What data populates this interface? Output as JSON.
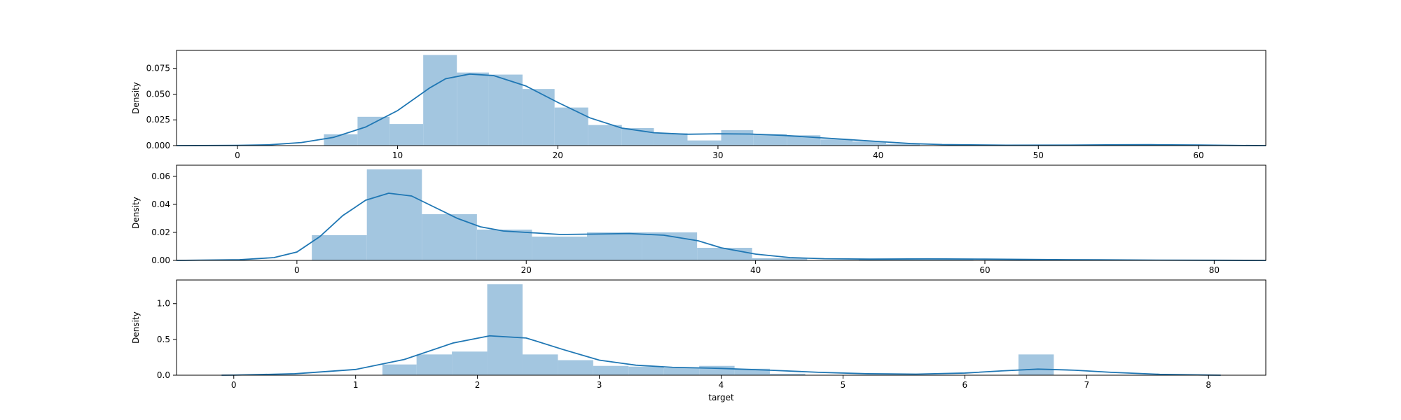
{
  "chart_data": [
    {
      "type": "histogram",
      "ylabel": "Density",
      "xlabel": "",
      "xlim": [
        -3.8,
        64.2
      ],
      "ylim": [
        0,
        0.0925
      ],
      "xticks": [
        0,
        10,
        20,
        30,
        40,
        50,
        60
      ],
      "yticks": [
        0.0,
        0.025,
        0.05,
        0.075
      ],
      "ytick_labels": [
        "0.000",
        "0.025",
        "0.050",
        "0.075"
      ],
      "bins": [
        {
          "x0": 5.4,
          "x1": 7.5,
          "value": 0.011
        },
        {
          "x0": 7.5,
          "x1": 9.5,
          "value": 0.028
        },
        {
          "x0": 9.5,
          "x1": 11.6,
          "value": 0.021
        },
        {
          "x0": 11.6,
          "x1": 13.7,
          "value": 0.088
        },
        {
          "x0": 13.7,
          "x1": 15.7,
          "value": 0.071
        },
        {
          "x0": 15.7,
          "x1": 17.8,
          "value": 0.069
        },
        {
          "x0": 17.8,
          "x1": 19.8,
          "value": 0.055
        },
        {
          "x0": 19.8,
          "x1": 21.9,
          "value": 0.037
        },
        {
          "x0": 21.9,
          "x1": 24.0,
          "value": 0.02
        },
        {
          "x0": 24.0,
          "x1": 26.0,
          "value": 0.017
        },
        {
          "x0": 26.0,
          "x1": 28.1,
          "value": 0.012
        },
        {
          "x0": 28.1,
          "x1": 30.2,
          "value": 0.005
        },
        {
          "x0": 30.2,
          "x1": 32.2,
          "value": 0.015
        },
        {
          "x0": 32.2,
          "x1": 34.3,
          "value": 0.011
        },
        {
          "x0": 34.3,
          "x1": 36.4,
          "value": 0.01
        },
        {
          "x0": 36.4,
          "x1": 38.4,
          "value": 0.006
        },
        {
          "x0": 38.4,
          "x1": 40.5,
          "value": 0.004
        },
        {
          "x0": 40.5,
          "x1": 42.6,
          "value": 0.0015
        },
        {
          "x0": 55.0,
          "x1": 59.0,
          "value": 0.001
        }
      ],
      "kde": [
        [
          -3.8,
          0.0
        ],
        [
          0,
          0.0002
        ],
        [
          2,
          0.0008
        ],
        [
          4,
          0.003
        ],
        [
          6,
          0.008
        ],
        [
          8,
          0.018
        ],
        [
          10,
          0.034
        ],
        [
          12,
          0.056
        ],
        [
          13,
          0.065
        ],
        [
          14.5,
          0.0695
        ],
        [
          16,
          0.068
        ],
        [
          18,
          0.058
        ],
        [
          20,
          0.042
        ],
        [
          22,
          0.027
        ],
        [
          24,
          0.017
        ],
        [
          26,
          0.0125
        ],
        [
          28,
          0.011
        ],
        [
          30,
          0.0115
        ],
        [
          32,
          0.0112
        ],
        [
          34,
          0.01
        ],
        [
          36,
          0.008
        ],
        [
          38,
          0.006
        ],
        [
          40,
          0.004
        ],
        [
          42,
          0.002
        ],
        [
          44,
          0.001
        ],
        [
          48,
          0.0004
        ],
        [
          52,
          0.0005
        ],
        [
          55,
          0.0008
        ],
        [
          57,
          0.0009
        ],
        [
          60,
          0.0006
        ],
        [
          62,
          0.0002
        ],
        [
          64.2,
          0.0
        ]
      ],
      "bar_color": "#a3c6e0",
      "line_color": "#1f77b4"
    },
    {
      "type": "histogram",
      "ylabel": "Density",
      "xlabel": "",
      "xlim": [
        -10.5,
        84.5
      ],
      "ylim": [
        0,
        0.068
      ],
      "xticks": [
        0,
        20,
        40,
        60,
        80
      ],
      "yticks": [
        0.0,
        0.02,
        0.04,
        0.06
      ],
      "ytick_labels": [
        "0.00",
        "0.02",
        "0.04",
        "0.06"
      ],
      "bins": [
        {
          "x0": 1.3,
          "x1": 6.1,
          "value": 0.018
        },
        {
          "x0": 6.1,
          "x1": 10.9,
          "value": 0.065
        },
        {
          "x0": 10.9,
          "x1": 15.7,
          "value": 0.033
        },
        {
          "x0": 15.7,
          "x1": 20.5,
          "value": 0.022
        },
        {
          "x0": 20.5,
          "x1": 25.3,
          "value": 0.017
        },
        {
          "x0": 25.3,
          "x1": 30.1,
          "value": 0.02
        },
        {
          "x0": 30.1,
          "x1": 34.9,
          "value": 0.02
        },
        {
          "x0": 34.9,
          "x1": 39.7,
          "value": 0.009
        },
        {
          "x0": 39.7,
          "x1": 44.5,
          "value": 0.0015
        },
        {
          "x0": 49.0,
          "x1": 54.0,
          "value": 0.0008
        },
        {
          "x0": 54.0,
          "x1": 59.0,
          "value": 0.0008
        }
      ],
      "kde": [
        [
          -10.5,
          0.0
        ],
        [
          -5,
          0.0005
        ],
        [
          -2,
          0.002
        ],
        [
          0,
          0.006
        ],
        [
          2,
          0.017
        ],
        [
          4,
          0.032
        ],
        [
          6,
          0.043
        ],
        [
          8,
          0.048
        ],
        [
          10,
          0.046
        ],
        [
          12,
          0.038
        ],
        [
          14,
          0.03
        ],
        [
          16,
          0.024
        ],
        [
          18,
          0.021
        ],
        [
          20,
          0.02
        ],
        [
          23,
          0.0185
        ],
        [
          26,
          0.0188
        ],
        [
          29,
          0.0192
        ],
        [
          32,
          0.018
        ],
        [
          35,
          0.014
        ],
        [
          37,
          0.009
        ],
        [
          40,
          0.0045
        ],
        [
          43,
          0.002
        ],
        [
          46,
          0.0012
        ],
        [
          50,
          0.0009
        ],
        [
          55,
          0.0011
        ],
        [
          60,
          0.0009
        ],
        [
          65,
          0.0006
        ],
        [
          70,
          0.0004
        ],
        [
          75,
          0.0002
        ],
        [
          80,
          0.0001
        ],
        [
          84.5,
          0.0
        ]
      ],
      "bar_color": "#a3c6e0",
      "line_color": "#1f77b4"
    },
    {
      "type": "histogram",
      "ylabel": "Density",
      "xlabel": "target",
      "xlim": [
        -0.47,
        8.47
      ],
      "ylim": [
        0,
        1.33
      ],
      "xticks": [
        0,
        1,
        2,
        3,
        4,
        5,
        6,
        7,
        8
      ],
      "yticks": [
        0.0,
        0.5,
        1.0
      ],
      "ytick_labels": [
        "0.0",
        "0.5",
        "1.0"
      ],
      "bins": [
        {
          "x0": 1.22,
          "x1": 1.5,
          "value": 0.15
        },
        {
          "x0": 1.5,
          "x1": 1.79,
          "value": 0.29
        },
        {
          "x0": 1.79,
          "x1": 2.08,
          "value": 0.33
        },
        {
          "x0": 2.08,
          "x1": 2.37,
          "value": 1.27
        },
        {
          "x0": 2.37,
          "x1": 2.66,
          "value": 0.29
        },
        {
          "x0": 2.66,
          "x1": 2.95,
          "value": 0.21
        },
        {
          "x0": 2.95,
          "x1": 3.24,
          "value": 0.13
        },
        {
          "x0": 3.24,
          "x1": 3.53,
          "value": 0.12
        },
        {
          "x0": 3.53,
          "x1": 3.82,
          "value": 0.1
        },
        {
          "x0": 3.82,
          "x1": 4.11,
          "value": 0.13
        },
        {
          "x0": 4.11,
          "x1": 4.4,
          "value": 0.09
        },
        {
          "x0": 4.4,
          "x1": 4.69,
          "value": 0.02
        },
        {
          "x0": 6.44,
          "x1": 6.73,
          "value": 0.29
        }
      ],
      "kde": [
        [
          -0.1,
          0.0
        ],
        [
          0,
          0.001
        ],
        [
          0.5,
          0.02
        ],
        [
          1,
          0.08
        ],
        [
          1.4,
          0.22
        ],
        [
          1.8,
          0.45
        ],
        [
          2.1,
          0.55
        ],
        [
          2.4,
          0.52
        ],
        [
          2.7,
          0.36
        ],
        [
          3.0,
          0.21
        ],
        [
          3.3,
          0.14
        ],
        [
          3.6,
          0.11
        ],
        [
          4.0,
          0.095
        ],
        [
          4.4,
          0.07
        ],
        [
          4.8,
          0.04
        ],
        [
          5.2,
          0.02
        ],
        [
          5.6,
          0.015
        ],
        [
          6.0,
          0.03
        ],
        [
          6.3,
          0.06
        ],
        [
          6.6,
          0.085
        ],
        [
          6.9,
          0.07
        ],
        [
          7.2,
          0.04
        ],
        [
          7.6,
          0.012
        ],
        [
          8.0,
          0.002
        ],
        [
          8.1,
          0.0
        ]
      ],
      "bar_color": "#a3c6e0",
      "line_color": "#1f77b4"
    }
  ]
}
